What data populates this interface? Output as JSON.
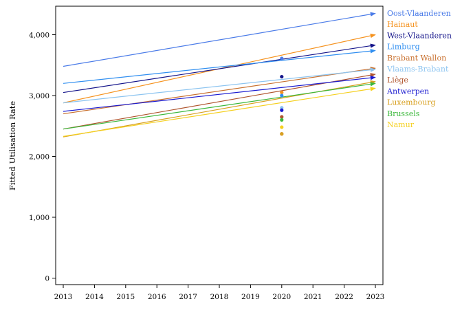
{
  "chart_data": {
    "type": "line",
    "title": "",
    "xlabel": "",
    "ylabel": "Fitted Utilisation Rate",
    "xlim": [
      2013,
      2023
    ],
    "ylim": [
      0,
      4500
    ],
    "x_ticks": [
      "2013",
      "2014",
      "2015",
      "2016",
      "2017",
      "2018",
      "2019",
      "2020",
      "2021",
      "2022",
      "2023"
    ],
    "y_ticks": [
      "0",
      "1,000",
      "2,000",
      "3,000",
      "4,000"
    ],
    "y_tick_values": [
      0,
      1000,
      2000,
      3000,
      4000
    ],
    "grid": false,
    "legend_position": "right",
    "series": [
      {
        "name": "Oost-Vlaanderen",
        "color": "#4a7be8",
        "line": [
          [
            2013,
            3480
          ],
          [
            2023,
            4350
          ]
        ],
        "point": [
          2020,
          3610
        ]
      },
      {
        "name": "Hainaut",
        "color": "#f5921e",
        "line": [
          [
            2013,
            2880
          ],
          [
            2023,
            4000
          ]
        ],
        "point": [
          2020,
          3050
        ]
      },
      {
        "name": "West-Vlaanderen",
        "color": "#14148a",
        "line": [
          [
            2013,
            3050
          ],
          [
            2023,
            3830
          ]
        ],
        "point": [
          2020,
          3310
        ]
      },
      {
        "name": "Limburg",
        "color": "#2f8ef0",
        "line": [
          [
            2013,
            3200
          ],
          [
            2023,
            3740
          ]
        ],
        "point": [
          2020,
          3000
        ]
      },
      {
        "name": "Brabant Wallon",
        "color": "#c8702e",
        "line": [
          [
            2013,
            2700
          ],
          [
            2023,
            3450
          ]
        ],
        "point": [
          2020,
          2370
        ]
      },
      {
        "name": "Vlaams-Brabant",
        "color": "#8cc4f0",
        "line": [
          [
            2013,
            2880
          ],
          [
            2023,
            3430
          ]
        ],
        "point": [
          2020,
          2800
        ]
      },
      {
        "name": "Liège",
        "color": "#b0552e",
        "line": [
          [
            2013,
            2450
          ],
          [
            2023,
            3350
          ]
        ],
        "point": [
          2020,
          2650
        ]
      },
      {
        "name": "Antwerpen",
        "color": "#1a1ad0",
        "line": [
          [
            2013,
            2740
          ],
          [
            2023,
            3300
          ]
        ],
        "point": [
          2020,
          2760
        ]
      },
      {
        "name": "Luxembourg",
        "color": "#d8a020",
        "line": [
          [
            2013,
            2320
          ],
          [
            2023,
            3230
          ]
        ],
        "point": [
          2020,
          2370
        ]
      },
      {
        "name": "Brussels",
        "color": "#3cb83c",
        "line": [
          [
            2013,
            2450
          ],
          [
            2023,
            3200
          ]
        ],
        "point": [
          2020,
          2600
        ]
      },
      {
        "name": "Namur",
        "color": "#f5d020",
        "line": [
          [
            2013,
            2330
          ],
          [
            2023,
            3120
          ]
        ],
        "point": [
          2020,
          2480
        ]
      }
    ]
  }
}
